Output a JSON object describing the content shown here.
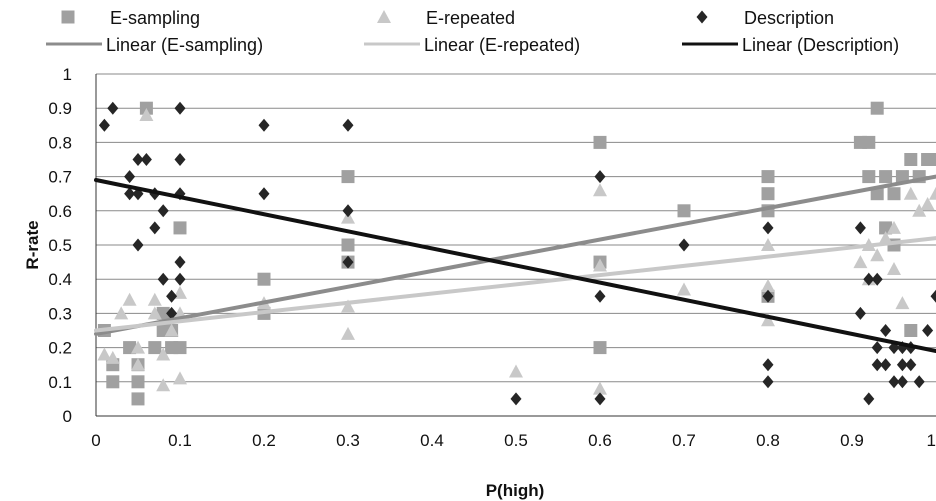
{
  "chart_data": {
    "type": "scatter",
    "title": "",
    "xlabel": "P(high)",
    "ylabel": "R-rate",
    "xlim": [
      0,
      1
    ],
    "ylim": [
      0,
      1
    ],
    "x_ticks": [
      "0",
      "0.1",
      "0.2",
      "0.3",
      "0.4",
      "0.5",
      "0.6",
      "0.7",
      "0.8",
      "0.9",
      "1"
    ],
    "y_ticks": [
      "0",
      "0.1",
      "0.2",
      "0.3",
      "0.4",
      "0.5",
      "0.6",
      "0.7",
      "0.8",
      "0.9",
      "1"
    ],
    "grid": "horizontal",
    "legend_position": "top",
    "series": [
      {
        "name": "E-sampling",
        "marker": "square",
        "color": "#a0a0a0",
        "points": [
          [
            0.01,
            0.25
          ],
          [
            0.02,
            0.1
          ],
          [
            0.02,
            0.15
          ],
          [
            0.04,
            0.2
          ],
          [
            0.05,
            0.05
          ],
          [
            0.05,
            0.1
          ],
          [
            0.05,
            0.15
          ],
          [
            0.06,
            0.9
          ],
          [
            0.07,
            0.2
          ],
          [
            0.08,
            0.25
          ],
          [
            0.08,
            0.3
          ],
          [
            0.09,
            0.2
          ],
          [
            0.09,
            0.25
          ],
          [
            0.1,
            0.2
          ],
          [
            0.1,
            0.55
          ],
          [
            0.2,
            0.3
          ],
          [
            0.2,
            0.4
          ],
          [
            0.3,
            0.45
          ],
          [
            0.3,
            0.5
          ],
          [
            0.3,
            0.7
          ],
          [
            0.6,
            0.2
          ],
          [
            0.6,
            0.45
          ],
          [
            0.6,
            0.8
          ],
          [
            0.7,
            0.6
          ],
          [
            0.8,
            0.35
          ],
          [
            0.8,
            0.6
          ],
          [
            0.8,
            0.65
          ],
          [
            0.8,
            0.7
          ],
          [
            0.91,
            0.8
          ],
          [
            0.92,
            0.7
          ],
          [
            0.92,
            0.8
          ],
          [
            0.93,
            0.65
          ],
          [
            0.93,
            0.9
          ],
          [
            0.94,
            0.7
          ],
          [
            0.94,
            0.55
          ],
          [
            0.95,
            0.5
          ],
          [
            0.95,
            0.65
          ],
          [
            0.96,
            0.7
          ],
          [
            0.97,
            0.75
          ],
          [
            0.97,
            0.25
          ],
          [
            0.98,
            0.7
          ],
          [
            0.99,
            0.75
          ],
          [
            1.0,
            0.75
          ]
        ]
      },
      {
        "name": "E-repeated",
        "marker": "triangle",
        "color": "#c8c8c8",
        "points": [
          [
            0.01,
            0.18
          ],
          [
            0.02,
            0.17
          ],
          [
            0.03,
            0.3
          ],
          [
            0.04,
            0.34
          ],
          [
            0.05,
            0.15
          ],
          [
            0.05,
            0.2
          ],
          [
            0.06,
            0.88
          ],
          [
            0.07,
            0.34
          ],
          [
            0.07,
            0.3
          ],
          [
            0.08,
            0.09
          ],
          [
            0.08,
            0.18
          ],
          [
            0.09,
            0.25
          ],
          [
            0.1,
            0.11
          ],
          [
            0.1,
            0.3
          ],
          [
            0.1,
            0.36
          ],
          [
            0.2,
            0.33
          ],
          [
            0.3,
            0.24
          ],
          [
            0.3,
            0.32
          ],
          [
            0.3,
            0.58
          ],
          [
            0.5,
            0.13
          ],
          [
            0.6,
            0.08
          ],
          [
            0.6,
            0.44
          ],
          [
            0.6,
            0.66
          ],
          [
            0.7,
            0.37
          ],
          [
            0.8,
            0.28
          ],
          [
            0.8,
            0.38
          ],
          [
            0.8,
            0.5
          ],
          [
            0.91,
            0.45
          ],
          [
            0.92,
            0.4
          ],
          [
            0.92,
            0.5
          ],
          [
            0.93,
            0.47
          ],
          [
            0.94,
            0.52
          ],
          [
            0.95,
            0.43
          ],
          [
            0.95,
            0.55
          ],
          [
            0.96,
            0.33
          ],
          [
            0.97,
            0.65
          ],
          [
            0.98,
            0.6
          ],
          [
            0.99,
            0.62
          ],
          [
            1.0,
            0.65
          ]
        ]
      },
      {
        "name": "Description",
        "marker": "diamond",
        "color": "#262626",
        "points": [
          [
            0.01,
            0.85
          ],
          [
            0.02,
            0.9
          ],
          [
            0.04,
            0.65
          ],
          [
            0.04,
            0.7
          ],
          [
            0.05,
            0.5
          ],
          [
            0.05,
            0.65
          ],
          [
            0.05,
            0.75
          ],
          [
            0.06,
            0.75
          ],
          [
            0.07,
            0.55
          ],
          [
            0.07,
            0.65
          ],
          [
            0.08,
            0.4
          ],
          [
            0.08,
            0.6
          ],
          [
            0.09,
            0.3
          ],
          [
            0.09,
            0.35
          ],
          [
            0.1,
            0.4
          ],
          [
            0.1,
            0.45
          ],
          [
            0.1,
            0.65
          ],
          [
            0.1,
            0.75
          ],
          [
            0.1,
            0.9
          ],
          [
            0.2,
            0.65
          ],
          [
            0.2,
            0.85
          ],
          [
            0.3,
            0.45
          ],
          [
            0.3,
            0.6
          ],
          [
            0.3,
            0.85
          ],
          [
            0.5,
            0.05
          ],
          [
            0.6,
            0.05
          ],
          [
            0.6,
            0.35
          ],
          [
            0.6,
            0.7
          ],
          [
            0.7,
            0.5
          ],
          [
            0.8,
            0.1
          ],
          [
            0.8,
            0.15
          ],
          [
            0.8,
            0.35
          ],
          [
            0.8,
            0.55
          ],
          [
            0.91,
            0.3
          ],
          [
            0.91,
            0.55
          ],
          [
            0.92,
            0.05
          ],
          [
            0.92,
            0.4
          ],
          [
            0.93,
            0.15
          ],
          [
            0.93,
            0.2
          ],
          [
            0.93,
            0.4
          ],
          [
            0.94,
            0.15
          ],
          [
            0.94,
            0.25
          ],
          [
            0.95,
            0.1
          ],
          [
            0.95,
            0.2
          ],
          [
            0.96,
            0.1
          ],
          [
            0.96,
            0.15
          ],
          [
            0.96,
            0.2
          ],
          [
            0.97,
            0.15
          ],
          [
            0.97,
            0.2
          ],
          [
            0.98,
            0.1
          ],
          [
            0.99,
            0.25
          ],
          [
            1.0,
            0.35
          ]
        ]
      }
    ],
    "trendlines": [
      {
        "name": "Linear (E-sampling)",
        "color": "#8c8c8c",
        "from": [
          0,
          0.24
        ],
        "to": [
          1,
          0.7
        ]
      },
      {
        "name": "Linear (E-repeated)",
        "color": "#c8c8c8",
        "from": [
          0,
          0.25
        ],
        "to": [
          1,
          0.52
        ]
      },
      {
        "name": "Linear (Description)",
        "color": "#111111",
        "from": [
          0,
          0.69
        ],
        "to": [
          1,
          0.19
        ]
      }
    ]
  }
}
